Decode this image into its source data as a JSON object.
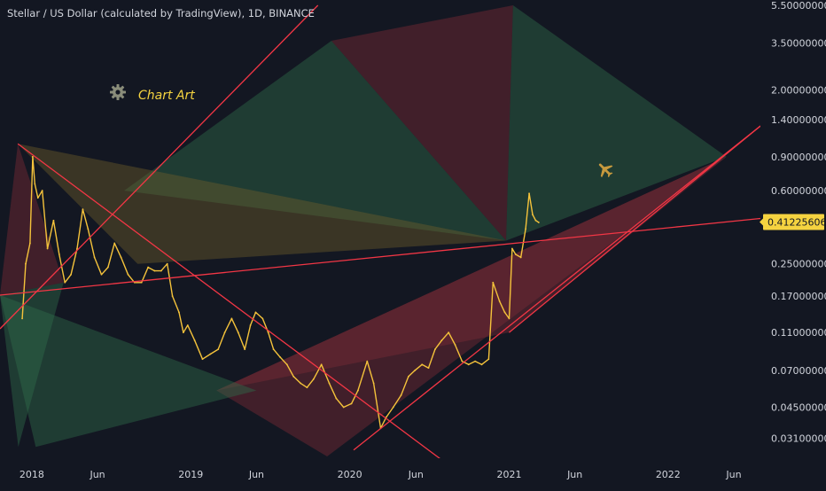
{
  "header": {
    "title": "Stellar / US Dollar (calculated by TradingView), 1D, BINANCE"
  },
  "annotation": {
    "label": "Chart Art",
    "icons": [
      "gear-icon",
      "airplane-icon"
    ]
  },
  "colors": {
    "background": "#131722",
    "price_line": "#f5c33b",
    "trend_line": "#f23645",
    "fill_green": "#2f6b4a",
    "fill_red": "#7a2a35",
    "fill_olive": "#6b5a2a",
    "axis_text": "#d1d4dc",
    "current_price_badge": "#f5d340"
  },
  "chart_data": {
    "type": "line",
    "title": "Stellar / US Dollar (calculated by TradingView), 1D, BINANCE",
    "xlabel": "",
    "ylabel": "",
    "y_scale": "log",
    "ylim": [
      0.025,
      5.5
    ],
    "xlim": [
      "2017-10-20",
      "2022-08-01"
    ],
    "grid": false,
    "x_tick_labels": [
      {
        "date": "2018-01-01",
        "label": "2018"
      },
      {
        "date": "2018-06-01",
        "label": "Jun"
      },
      {
        "date": "2019-01-01",
        "label": "2019"
      },
      {
        "date": "2019-06-01",
        "label": "Jun"
      },
      {
        "date": "2020-01-01",
        "label": "2020"
      },
      {
        "date": "2020-06-01",
        "label": "Jun"
      },
      {
        "date": "2021-01-01",
        "label": "2021"
      },
      {
        "date": "2021-06-01",
        "label": "Jun"
      },
      {
        "date": "2022-01-01",
        "label": "2022"
      },
      {
        "date": "2022-06-01",
        "label": "Jun"
      }
    ],
    "y_tick_labels": [
      {
        "value": 5.5,
        "label": "5.50000000"
      },
      {
        "value": 3.5,
        "label": "3.50000000"
      },
      {
        "value": 2.0,
        "label": "2.00000000"
      },
      {
        "value": 1.4,
        "label": "1.40000000"
      },
      {
        "value": 0.9,
        "label": "0.90000000"
      },
      {
        "value": 0.6,
        "label": "0.60000000"
      },
      {
        "value": 0.25,
        "label": "0.25000000"
      },
      {
        "value": 0.17,
        "label": "0.17000000"
      },
      {
        "value": 0.11,
        "label": "0.11000000"
      },
      {
        "value": 0.07,
        "label": "0.07000000"
      },
      {
        "value": 0.045,
        "label": "0.04500000"
      },
      {
        "value": 0.031,
        "label": "0.03100000"
      }
    ],
    "current_price": {
      "value": 0.41225606,
      "label": "0.41225606"
    },
    "series": [
      {
        "points": [
          [
            "2017-12-10",
            0.13
          ],
          [
            "2017-12-18",
            0.25
          ],
          [
            "2017-12-28",
            0.32
          ],
          [
            "2018-01-03",
            0.9
          ],
          [
            "2018-01-08",
            0.65
          ],
          [
            "2018-01-15",
            0.55
          ],
          [
            "2018-01-25",
            0.6
          ],
          [
            "2018-02-06",
            0.3
          ],
          [
            "2018-02-20",
            0.42
          ],
          [
            "2018-03-05",
            0.28
          ],
          [
            "2018-03-18",
            0.2
          ],
          [
            "2018-04-01",
            0.22
          ],
          [
            "2018-04-15",
            0.3
          ],
          [
            "2018-04-28",
            0.48
          ],
          [
            "2018-05-10",
            0.38
          ],
          [
            "2018-05-25",
            0.27
          ],
          [
            "2018-06-10",
            0.22
          ],
          [
            "2018-06-25",
            0.24
          ],
          [
            "2018-07-10",
            0.32
          ],
          [
            "2018-07-25",
            0.27
          ],
          [
            "2018-08-10",
            0.22
          ],
          [
            "2018-08-25",
            0.2
          ],
          [
            "2018-09-10",
            0.2
          ],
          [
            "2018-09-25",
            0.24
          ],
          [
            "2018-10-10",
            0.23
          ],
          [
            "2018-10-25",
            0.23
          ],
          [
            "2018-11-08",
            0.25
          ],
          [
            "2018-11-20",
            0.17
          ],
          [
            "2018-12-05",
            0.14
          ],
          [
            "2018-12-15",
            0.11
          ],
          [
            "2018-12-25",
            0.12
          ],
          [
            "2019-01-10",
            0.1
          ],
          [
            "2019-01-28",
            0.08
          ],
          [
            "2019-02-15",
            0.085
          ],
          [
            "2019-03-05",
            0.09
          ],
          [
            "2019-03-20",
            0.11
          ],
          [
            "2019-04-05",
            0.13
          ],
          [
            "2019-04-20",
            0.11
          ],
          [
            "2019-05-05",
            0.09
          ],
          [
            "2019-05-18",
            0.12
          ],
          [
            "2019-05-30",
            0.14
          ],
          [
            "2019-06-15",
            0.13
          ],
          [
            "2019-06-28",
            0.11
          ],
          [
            "2019-07-10",
            0.09
          ],
          [
            "2019-07-25",
            0.082
          ],
          [
            "2019-08-10",
            0.075
          ],
          [
            "2019-08-25",
            0.065
          ],
          [
            "2019-09-10",
            0.06
          ],
          [
            "2019-09-25",
            0.057
          ],
          [
            "2019-10-10",
            0.063
          ],
          [
            "2019-10-28",
            0.075
          ],
          [
            "2019-11-15",
            0.06
          ],
          [
            "2019-12-01",
            0.05
          ],
          [
            "2019-12-18",
            0.045
          ],
          [
            "2020-01-05",
            0.047
          ],
          [
            "2020-01-20",
            0.055
          ],
          [
            "2020-02-10",
            0.078
          ],
          [
            "2020-02-25",
            0.06
          ],
          [
            "2020-03-12",
            0.035
          ],
          [
            "2020-03-25",
            0.04
          ],
          [
            "2020-04-10",
            0.045
          ],
          [
            "2020-04-28",
            0.052
          ],
          [
            "2020-05-15",
            0.065
          ],
          [
            "2020-05-30",
            0.07
          ],
          [
            "2020-06-15",
            0.075
          ],
          [
            "2020-06-30",
            0.072
          ],
          [
            "2020-07-15",
            0.09
          ],
          [
            "2020-07-30",
            0.1
          ],
          [
            "2020-08-15",
            0.11
          ],
          [
            "2020-08-30",
            0.095
          ],
          [
            "2020-09-15",
            0.078
          ],
          [
            "2020-09-30",
            0.075
          ],
          [
            "2020-10-15",
            0.078
          ],
          [
            "2020-10-30",
            0.075
          ],
          [
            "2020-11-15",
            0.08
          ],
          [
            "2020-11-25",
            0.2
          ],
          [
            "2020-12-10",
            0.16
          ],
          [
            "2020-12-22",
            0.14
          ],
          [
            "2021-01-01",
            0.13
          ],
          [
            "2021-01-08",
            0.3
          ],
          [
            "2021-01-16",
            0.28
          ],
          [
            "2021-01-28",
            0.27
          ],
          [
            "2021-02-08",
            0.38
          ],
          [
            "2021-02-16",
            0.58
          ],
          [
            "2021-02-24",
            0.45
          ],
          [
            "2021-03-03",
            0.42
          ],
          [
            "2021-03-10",
            0.41
          ]
        ]
      }
    ],
    "drawings": [
      {
        "kind": "trend_line",
        "from": [
          "2017-10-20",
          0.115
        ],
        "to": [
          "2019-10-20",
          5.5
        ]
      },
      {
        "kind": "trend_line",
        "from": [
          "2017-10-20",
          0.172
        ],
        "to": [
          "2022-08-01",
          0.43
        ]
      },
      {
        "kind": "trend_line",
        "from": [
          "2017-11-30",
          1.05
        ],
        "to": [
          "2020-08-10",
          0.023
        ]
      },
      {
        "kind": "trend_line",
        "from": [
          "2020-01-10",
          0.027
        ],
        "to": [
          "2022-08-01",
          1.3
        ]
      },
      {
        "kind": "trend_line",
        "from": [
          "2021-01-01",
          0.11
        ],
        "to": [
          "2022-08-01",
          1.3
        ]
      },
      {
        "kind": "filled_triangle",
        "fill": "green",
        "vertices": [
          [
            "2017-10-20",
            0.172
          ],
          [
            "2017-12-01",
            0.028
          ],
          [
            "2018-03-15",
            0.2
          ]
        ]
      },
      {
        "kind": "filled_triangle",
        "fill": "red",
        "vertices": [
          [
            "2017-10-20",
            0.172
          ],
          [
            "2017-11-30",
            1.05
          ],
          [
            "2018-03-15",
            0.2
          ]
        ]
      },
      {
        "kind": "filled_triangle",
        "fill": "green",
        "vertices": [
          [
            "2018-08-01",
            0.6
          ],
          [
            "2019-11-20",
            3.6
          ],
          [
            "2020-12-25",
            0.33
          ]
        ]
      },
      {
        "kind": "filled_triangle",
        "fill": "olive",
        "vertices": [
          [
            "2017-11-30",
            1.05
          ],
          [
            "2020-12-25",
            0.33
          ],
          [
            "2018-09-01",
            0.25
          ]
        ]
      },
      {
        "kind": "filled_triangle",
        "fill": "red",
        "vertices": [
          [
            "2019-11-20",
            3.6
          ],
          [
            "2021-01-10",
            5.5
          ],
          [
            "2020-12-25",
            0.33
          ]
        ]
      },
      {
        "kind": "filled_triangle",
        "fill": "green",
        "vertices": [
          [
            "2021-01-10",
            5.5
          ],
          [
            "2022-05-15",
            0.9
          ],
          [
            "2020-12-25",
            0.33
          ]
        ]
      },
      {
        "kind": "filled_triangle",
        "fill": "red",
        "vertices": [
          [
            "2019-03-01",
            0.055
          ],
          [
            "2022-05-15",
            0.9
          ],
          [
            "2021-01-01",
            0.11
          ]
        ]
      },
      {
        "kind": "filled_triangle",
        "fill": "red",
        "vertices": [
          [
            "2019-11-10",
            0.025
          ],
          [
            "2022-05-15",
            0.9
          ],
          [
            "2019-03-01",
            0.055
          ]
        ]
      },
      {
        "kind": "filled_triangle",
        "fill": "green",
        "vertices": [
          [
            "2017-10-20",
            0.172
          ],
          [
            "2019-06-01",
            0.055
          ],
          [
            "2018-01-10",
            0.028
          ]
        ]
      }
    ]
  }
}
